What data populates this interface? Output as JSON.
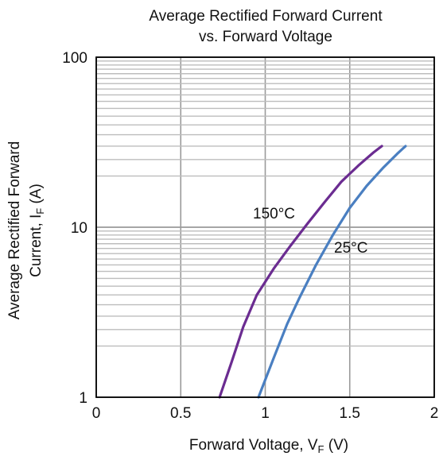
{
  "chart_data": {
    "type": "line",
    "title_line1": "Average Rectified Forward Current",
    "title_line2": "vs. Forward Voltage",
    "xlabel_main": "Forward Voltage, V",
    "xlabel_sub": "F",
    "xlabel_unit": " (V)",
    "ylabel_line1": "Average Rectified Forward",
    "ylabel_line2_main": "Current, I",
    "ylabel_line2_sub": "F",
    "ylabel_line2_unit": " (A)",
    "xlim": [
      0,
      2
    ],
    "ylim": [
      1,
      100
    ],
    "yscale": "log",
    "grid": true,
    "x_ticks": [
      {
        "value": 0,
        "label": "0"
      },
      {
        "value": 0.5,
        "label": "0.5"
      },
      {
        "value": 1,
        "label": "1"
      },
      {
        "value": 1.5,
        "label": "1.5"
      },
      {
        "value": 2,
        "label": "2"
      }
    ],
    "y_ticks": [
      {
        "value": 1,
        "label": "1"
      },
      {
        "value": 10,
        "label": "10"
      },
      {
        "value": 100,
        "label": "100"
      }
    ],
    "series": [
      {
        "name": "150°C",
        "color": "#6b2c91",
        "points": [
          [
            0.73,
            1.0
          ],
          [
            0.8,
            1.6
          ],
          [
            0.87,
            2.6
          ],
          [
            0.95,
            4.0
          ],
          [
            1.05,
            5.7
          ],
          [
            1.15,
            7.8
          ],
          [
            1.25,
            10.5
          ],
          [
            1.35,
            14.0
          ],
          [
            1.45,
            18.5
          ],
          [
            1.55,
            23.0
          ],
          [
            1.64,
            27.5
          ],
          [
            1.69,
            30.0
          ]
        ]
      },
      {
        "name": "25°C",
        "color": "#4a7fc1",
        "points": [
          [
            0.96,
            1.0
          ],
          [
            1.05,
            1.7
          ],
          [
            1.13,
            2.7
          ],
          [
            1.2,
            3.8
          ],
          [
            1.3,
            6.0
          ],
          [
            1.4,
            9.0
          ],
          [
            1.5,
            13.0
          ],
          [
            1.6,
            17.5
          ],
          [
            1.7,
            22.5
          ],
          [
            1.78,
            27.0
          ],
          [
            1.83,
            30.0
          ]
        ]
      }
    ]
  }
}
